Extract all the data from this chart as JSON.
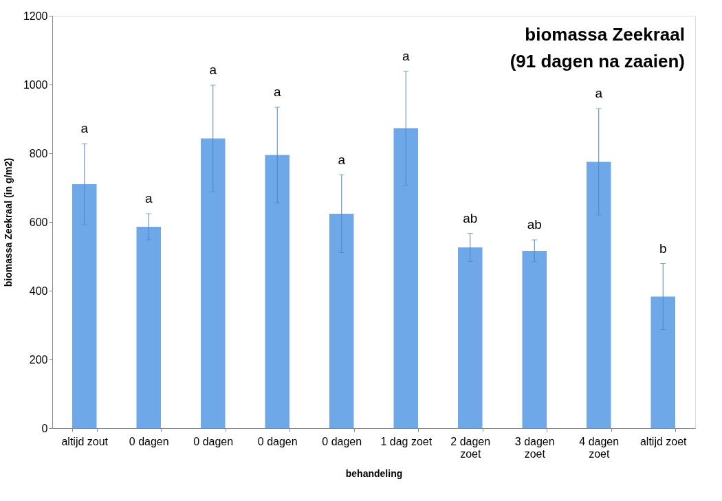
{
  "chart_data": {
    "type": "bar",
    "title": "biomassa Zeekraal",
    "subtitle": "(91 dagen na zaaien)",
    "xlabel": "behandeling",
    "ylabel": "biomassa Zeekraal (in g/m2)",
    "categories": [
      "altijd zout",
      "0 dagen",
      "0 dagen",
      "0 dagen",
      "0 dagen",
      "1 dag zoet",
      "2 dagen zoet",
      "3 dagen zoet",
      "4 dagen zoet",
      "altijd zoet"
    ],
    "values": [
      710,
      586,
      843,
      795,
      624,
      873,
      526,
      516,
      775,
      383
    ],
    "errors": [
      118,
      38,
      155,
      139,
      113,
      166,
      41,
      32,
      155,
      96
    ],
    "color": "#6fa8e8",
    "annotations": [
      "a",
      "a",
      "a",
      "a",
      "a",
      "a",
      "ab",
      "ab",
      "a",
      "b"
    ],
    "ylim": [
      0,
      1200
    ],
    "yticks": [
      0,
      200,
      400,
      600,
      800,
      1000,
      1200
    ],
    "grid": false
  }
}
